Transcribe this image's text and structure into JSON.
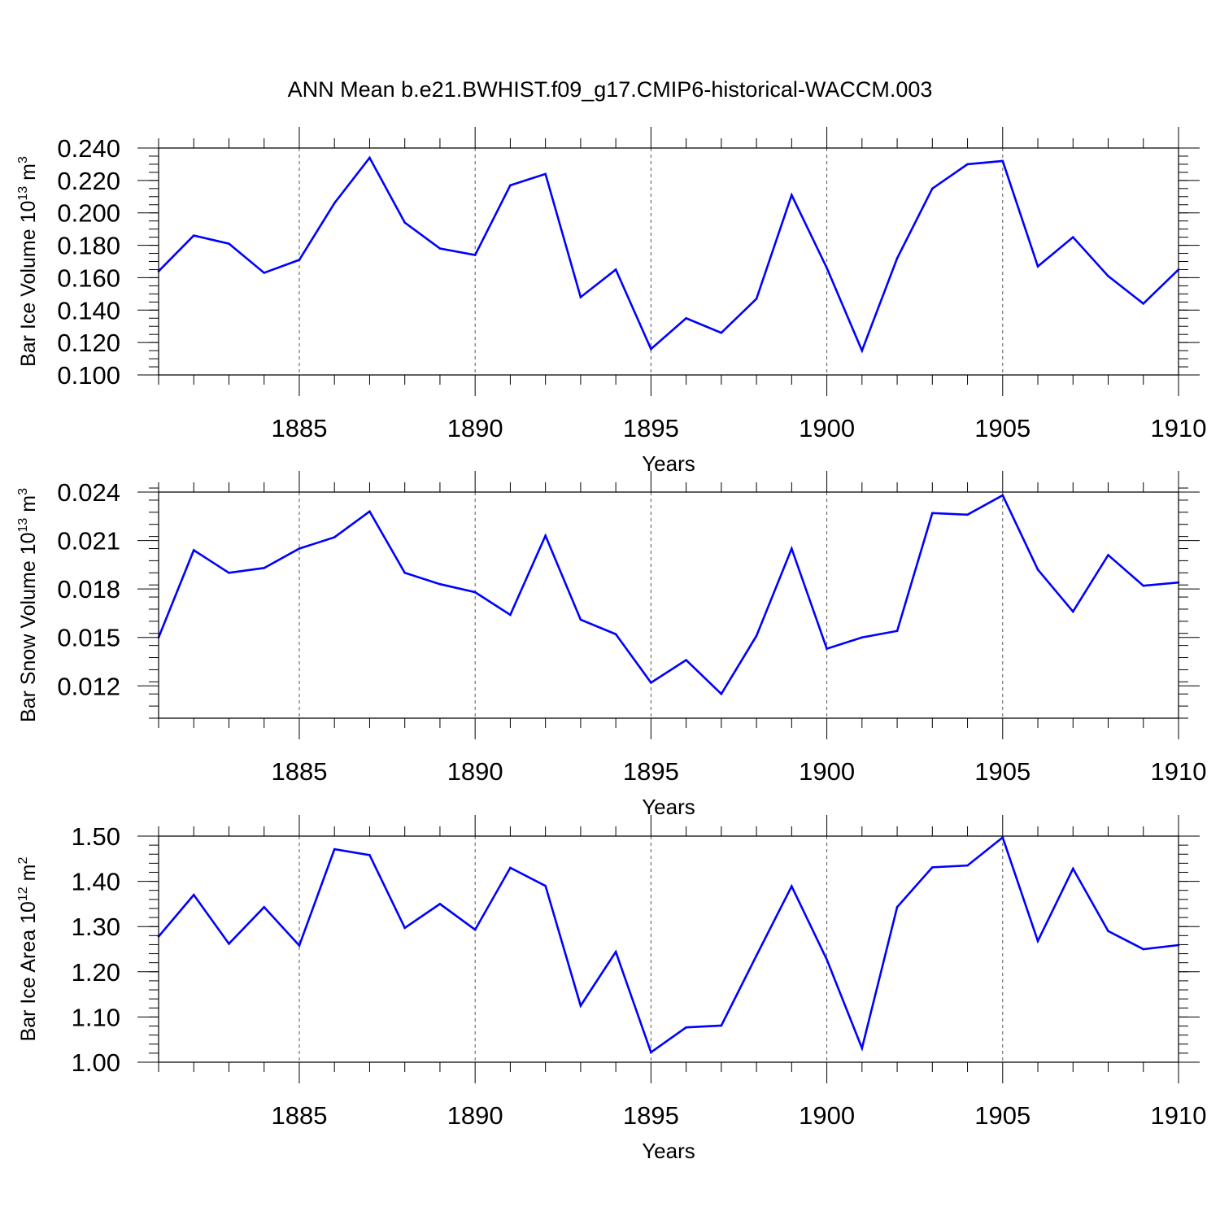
{
  "title": "ANN Mean b.e21.BWHIST.f09_g17.CMIP6-historical-WACCM.003",
  "colors": {
    "line": "#0000ff",
    "axis": "#000000",
    "grid": "#555555",
    "background": "#ffffff"
  },
  "chart_data": [
    {
      "type": "line",
      "ylabel": "Bar Ice Volume 10",
      "ylabel_unit": "13",
      "ylabel_suffix": "m",
      "ylabel_suffix_exp": "3",
      "xlabel": "Years",
      "xlim": [
        1881,
        1910
      ],
      "ylim": [
        0.1,
        0.24
      ],
      "yticks": [
        0.1,
        0.12,
        0.14,
        0.16,
        0.18,
        0.2,
        0.22,
        0.24
      ],
      "ytick_labels": [
        "0.100",
        "0.120",
        "0.140",
        "0.160",
        "0.180",
        "0.200",
        "0.220",
        "0.240"
      ],
      "yminor_step": 0.005,
      "xticks": [
        1885,
        1890,
        1895,
        1900,
        1905,
        1910
      ],
      "xtick_labels": [
        "1885",
        "1890",
        "1895",
        "1900",
        "1905",
        "1910"
      ],
      "x": [
        1881,
        1882,
        1883,
        1884,
        1885,
        1886,
        1887,
        1888,
        1889,
        1890,
        1891,
        1892,
        1893,
        1894,
        1895,
        1896,
        1897,
        1898,
        1899,
        1900,
        1901,
        1902,
        1903,
        1904,
        1905,
        1906,
        1907,
        1908,
        1909,
        1910
      ],
      "values": [
        0.164,
        0.186,
        0.181,
        0.163,
        0.171,
        0.206,
        0.234,
        0.194,
        0.178,
        0.174,
        0.217,
        0.224,
        0.148,
        0.165,
        0.116,
        0.135,
        0.126,
        0.147,
        0.211,
        0.166,
        0.115,
        0.172,
        0.215,
        0.23,
        0.232,
        0.167,
        0.185,
        0.161,
        0.144,
        0.165
      ]
    },
    {
      "type": "line",
      "ylabel": "Bar Snow Volume 10",
      "ylabel_unit": "13",
      "ylabel_suffix": "m",
      "ylabel_suffix_exp": "3",
      "xlabel": "Years",
      "xlim": [
        1881,
        1910
      ],
      "ylim": [
        0.01,
        0.024
      ],
      "yticks": [
        0.012,
        0.015,
        0.018,
        0.021,
        0.024
      ],
      "ytick_labels": [
        "0.012",
        "0.015",
        "0.018",
        "0.021",
        "0.024"
      ],
      "yminor_step": 0.00075,
      "xticks": [
        1885,
        1890,
        1895,
        1900,
        1905,
        1910
      ],
      "xtick_labels": [
        "1885",
        "1890",
        "1895",
        "1900",
        "1905",
        "1910"
      ],
      "x": [
        1881,
        1882,
        1883,
        1884,
        1885,
        1886,
        1887,
        1888,
        1889,
        1890,
        1891,
        1892,
        1893,
        1894,
        1895,
        1896,
        1897,
        1898,
        1899,
        1900,
        1901,
        1902,
        1903,
        1904,
        1905,
        1906,
        1907,
        1908,
        1909,
        1910
      ],
      "values": [
        0.015,
        0.0204,
        0.019,
        0.0193,
        0.0205,
        0.0212,
        0.0228,
        0.019,
        0.0183,
        0.0178,
        0.0164,
        0.0213,
        0.0161,
        0.0152,
        0.0122,
        0.0136,
        0.0115,
        0.0151,
        0.0205,
        0.0143,
        0.015,
        0.0154,
        0.0227,
        0.0226,
        0.0238,
        0.0192,
        0.0166,
        0.0201,
        0.0182,
        0.0184
      ]
    },
    {
      "type": "line",
      "ylabel": "Bar Ice Area 10",
      "ylabel_unit": "12",
      "ylabel_suffix": "m",
      "ylabel_suffix_exp": "2",
      "xlabel": "Years",
      "xlim": [
        1881,
        1910
      ],
      "ylim": [
        1.0,
        1.5
      ],
      "yticks": [
        1.0,
        1.1,
        1.2,
        1.3,
        1.4,
        1.5
      ],
      "ytick_labels": [
        "1.00",
        "1.10",
        "1.20",
        "1.30",
        "1.40",
        "1.50"
      ],
      "yminor_step": 0.02,
      "xticks": [
        1885,
        1890,
        1895,
        1900,
        1905,
        1910
      ],
      "xtick_labels": [
        "1885",
        "1890",
        "1895",
        "1900",
        "1905",
        "1910"
      ],
      "x": [
        1881,
        1882,
        1883,
        1884,
        1885,
        1886,
        1887,
        1888,
        1889,
        1890,
        1891,
        1892,
        1893,
        1894,
        1895,
        1896,
        1897,
        1898,
        1899,
        1900,
        1901,
        1902,
        1903,
        1904,
        1905,
        1906,
        1907,
        1908,
        1909,
        1910
      ],
      "values": [
        1.278,
        1.37,
        1.262,
        1.343,
        1.258,
        1.471,
        1.458,
        1.297,
        1.35,
        1.293,
        1.43,
        1.39,
        1.125,
        1.244,
        1.022,
        1.077,
        1.081,
        1.236,
        1.389,
        1.227,
        1.031,
        1.343,
        1.431,
        1.435,
        1.497,
        1.268,
        1.428,
        1.29,
        1.25,
        1.259
      ]
    }
  ]
}
